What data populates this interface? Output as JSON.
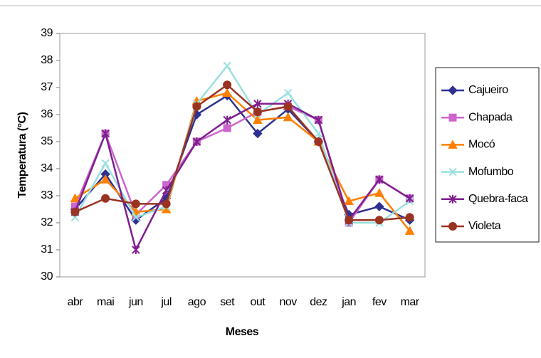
{
  "chart_data": {
    "type": "line",
    "x_label": "Meses",
    "y_label": "Temperatura (°C)",
    "categories": [
      "abr",
      "mai",
      "jun",
      "jul",
      "ago",
      "set",
      "out",
      "nov",
      "dez",
      "jan",
      "fev",
      "mar"
    ],
    "ylim": [
      30,
      39
    ],
    "yticks": [
      30,
      31,
      32,
      33,
      34,
      35,
      36,
      37,
      38,
      39
    ],
    "grid": false,
    "legend": "right",
    "series": [
      {
        "name": "Cajueiro",
        "color": "#2e3192",
        "marker": "diamond",
        "values": [
          32.5,
          33.8,
          32.1,
          32.9,
          36.0,
          36.7,
          35.3,
          36.2,
          35.0,
          32.3,
          32.6,
          32.1
        ]
      },
      {
        "name": "Chapada",
        "color": "#cc66cc",
        "marker": "square",
        "values": [
          32.6,
          35.3,
          32.3,
          33.4,
          35.0,
          35.5,
          36.1,
          36.3,
          35.8,
          32.0,
          33.6,
          32.9
        ]
      },
      {
        "name": "Mocó",
        "color": "#ff8000",
        "marker": "triangle",
        "values": [
          32.9,
          33.6,
          32.4,
          32.5,
          36.5,
          36.8,
          35.8,
          35.9,
          35.0,
          32.8,
          33.1,
          31.7
        ]
      },
      {
        "name": "Mofumbo",
        "color": "#99e0e0",
        "marker": "x",
        "values": [
          32.2,
          34.2,
          32.2,
          32.6,
          36.4,
          37.8,
          36.0,
          36.8,
          35.3,
          32.0,
          32.0,
          32.8
        ]
      },
      {
        "name": "Quebra-faca",
        "color": "#7f1f8f",
        "marker": "star",
        "values": [
          32.4,
          35.3,
          31.0,
          33.2,
          35.0,
          35.8,
          36.4,
          36.4,
          35.8,
          32.1,
          33.6,
          32.9
        ]
      },
      {
        "name": "Violeta",
        "color": "#993322",
        "marker": "circle",
        "values": [
          32.4,
          32.9,
          32.7,
          32.7,
          36.3,
          37.1,
          36.1,
          36.3,
          35.0,
          32.1,
          32.1,
          32.2
        ]
      }
    ]
  }
}
